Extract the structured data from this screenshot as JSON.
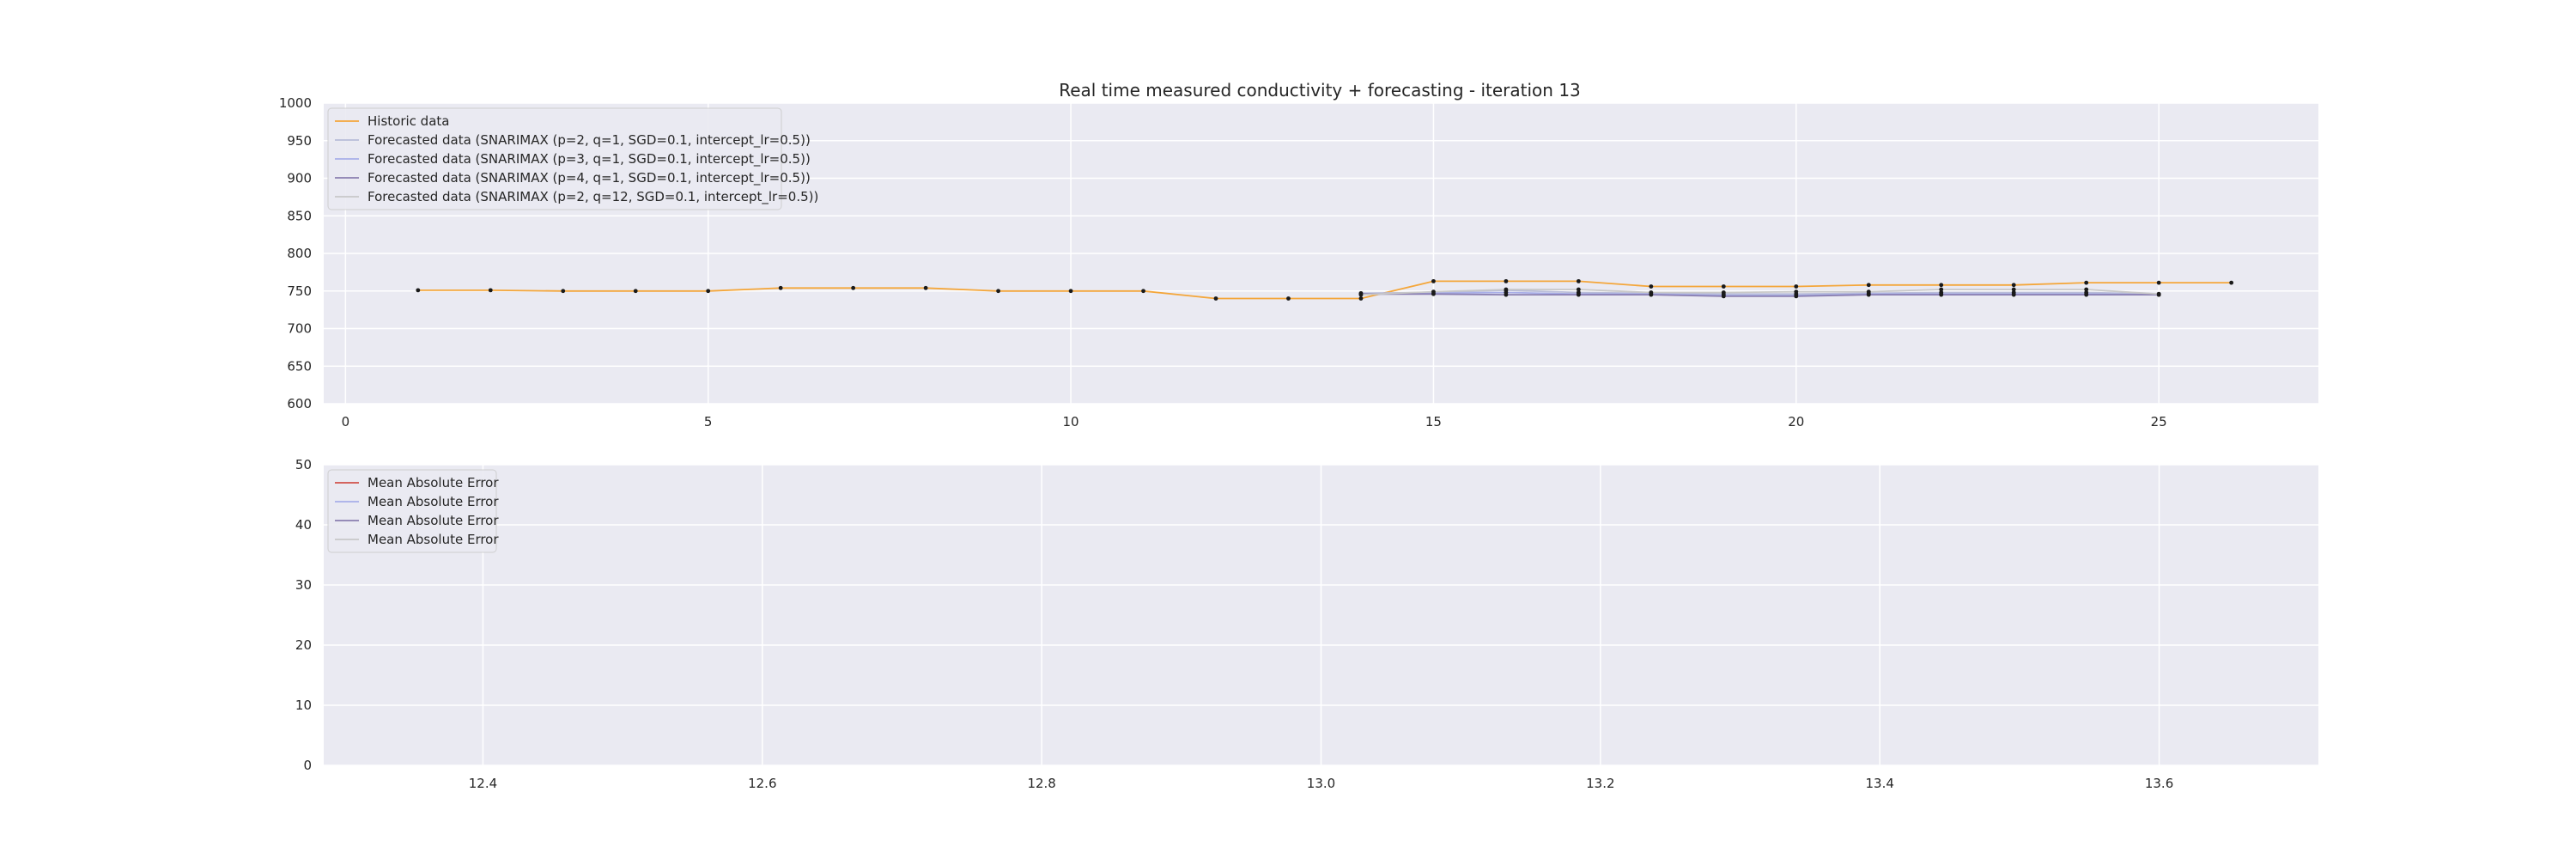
{
  "chart_data": [
    {
      "type": "line",
      "title": "Real time measured conductivity + forecasting - iteration 13",
      "xlabel": "",
      "ylabel": "",
      "xlim": [
        -0.3,
        27.2
      ],
      "ylim": [
        600,
        1000
      ],
      "xticks": [
        0,
        5,
        10,
        15,
        20,
        25
      ],
      "yticks": [
        600,
        650,
        700,
        750,
        800,
        850,
        900,
        950,
        1000
      ],
      "grid": true,
      "legend_position": "top-left",
      "series": [
        {
          "name": "Historic data",
          "color": "#f4a63a",
          "x": [
            1,
            2,
            3,
            4,
            5,
            6,
            7,
            8,
            9,
            10,
            11,
            12,
            13,
            14,
            15,
            16,
            17,
            18,
            19,
            20,
            21,
            22,
            23,
            24,
            25,
            26
          ],
          "y": [
            751,
            751,
            750,
            750,
            750,
            754,
            754,
            754,
            750,
            750,
            750,
            740,
            740,
            740,
            763,
            763,
            763,
            756,
            756,
            756,
            758,
            758,
            758,
            761,
            761,
            761
          ]
        },
        {
          "name": "Forecasted data (SNARIMAX (p=2, q=1, SGD=0.1, intercept_lr=0.5))",
          "color": "#b8bcd8",
          "x": [
            14,
            15,
            16,
            17,
            18,
            19,
            20,
            21,
            22,
            23,
            24,
            25
          ],
          "y": [
            747,
            748,
            751,
            748,
            747,
            746,
            746,
            747,
            748,
            748,
            748,
            746
          ]
        },
        {
          "name": "Forecasted data (SNARIMAX (p=3, q=1, SGD=0.1, intercept_lr=0.5))",
          "color": "#a8aee8",
          "x": [
            14,
            15,
            16,
            17,
            18,
            19,
            20,
            21,
            22,
            23,
            24,
            25
          ],
          "y": [
            746,
            747,
            748,
            746,
            746,
            744,
            744,
            746,
            746,
            746,
            746,
            745
          ]
        },
        {
          "name": "Forecasted data (SNARIMAX (p=4, q=1, SGD=0.1, intercept_lr=0.5))",
          "color": "#8a7fb0",
          "x": [
            14,
            15,
            16,
            17,
            18,
            19,
            20,
            21,
            22,
            23,
            24,
            25
          ],
          "y": [
            746,
            746,
            745,
            745,
            745,
            743,
            743,
            745,
            745,
            745,
            745,
            745
          ]
        },
        {
          "name": "Forecasted data (SNARIMAX (p=2, q=12, SGD=0.1, intercept_lr=0.5))",
          "color": "#c8c8c8",
          "x": [
            14,
            15,
            16,
            17,
            18,
            19,
            20,
            21,
            22,
            23,
            24,
            25
          ],
          "y": [
            745,
            749,
            752,
            752,
            748,
            748,
            749,
            749,
            752,
            752,
            752,
            746
          ]
        }
      ]
    },
    {
      "type": "line",
      "title": "",
      "xlabel": "",
      "ylabel": "",
      "xlim": [
        12.286,
        13.714
      ],
      "ylim": [
        0,
        50
      ],
      "xticks": [
        12.4,
        12.6,
        12.8,
        13.0,
        13.2,
        13.4,
        13.6
      ],
      "xtick_labels": [
        "12.4",
        "12.6",
        "12.8",
        "13.0",
        "13.2",
        "13.4",
        "13.6"
      ],
      "yticks": [
        0,
        10,
        20,
        30,
        40,
        50
      ],
      "grid": true,
      "legend_position": "top-left",
      "series": [
        {
          "name": "Mean Absolute Error",
          "color": "#d0504a",
          "x": [],
          "y": []
        },
        {
          "name": "Mean Absolute Error",
          "color": "#a8aee8",
          "x": [],
          "y": []
        },
        {
          "name": "Mean Absolute Error",
          "color": "#8a7fb0",
          "x": [],
          "y": []
        },
        {
          "name": "Mean Absolute Error",
          "color": "#c8c8c8",
          "x": [],
          "y": []
        }
      ]
    }
  ]
}
